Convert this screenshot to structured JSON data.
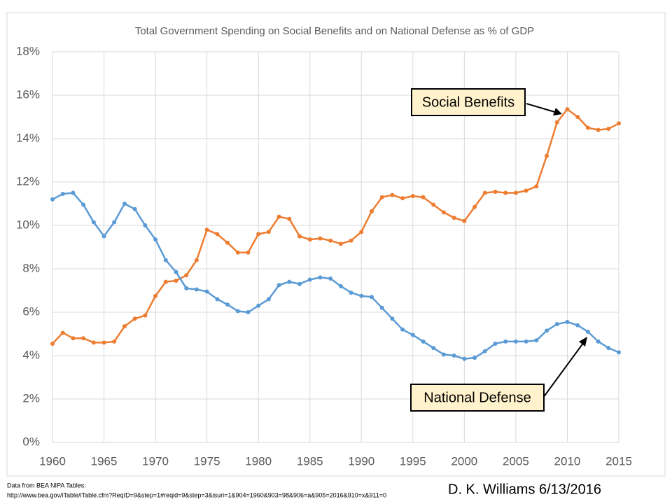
{
  "chart_data": {
    "type": "line",
    "title": "Total Government Spending on Social Benefits and on National Defense as % of GDP",
    "x": [
      1960,
      1961,
      1962,
      1963,
      1964,
      1965,
      1966,
      1967,
      1968,
      1969,
      1970,
      1971,
      1972,
      1973,
      1974,
      1975,
      1976,
      1977,
      1978,
      1979,
      1980,
      1981,
      1982,
      1983,
      1984,
      1985,
      1986,
      1987,
      1988,
      1989,
      1990,
      1991,
      1992,
      1993,
      1994,
      1995,
      1996,
      1997,
      1998,
      1999,
      2000,
      2001,
      2002,
      2003,
      2004,
      2005,
      2006,
      2007,
      2008,
      2009,
      2010,
      2011,
      2012,
      2013,
      2014,
      2015
    ],
    "series": [
      {
        "name": "Social Benefits",
        "color": "#ed7d31",
        "values": [
          4.55,
          5.05,
          4.8,
          4.8,
          4.6,
          4.6,
          4.65,
          5.35,
          5.7,
          5.85,
          6.75,
          7.4,
          7.45,
          7.7,
          8.4,
          9.8,
          9.6,
          9.2,
          8.75,
          8.75,
          9.6,
          9.7,
          10.4,
          10.3,
          9.5,
          9.35,
          9.4,
          9.3,
          9.15,
          9.3,
          9.7,
          10.65,
          11.3,
          11.4,
          11.25,
          11.35,
          11.3,
          10.95,
          10.6,
          10.35,
          10.2,
          10.85,
          11.5,
          11.55,
          11.5,
          11.5,
          11.6,
          11.8,
          13.2,
          14.75,
          15.35,
          15.0,
          14.5,
          14.4,
          14.45,
          14.7
        ]
      },
      {
        "name": "National Defense",
        "color": "#5b9bd5",
        "values": [
          11.2,
          11.45,
          11.5,
          10.95,
          10.15,
          9.5,
          10.15,
          11.0,
          10.75,
          10.0,
          9.35,
          8.4,
          7.85,
          7.1,
          7.05,
          6.95,
          6.6,
          6.35,
          6.05,
          6.0,
          6.3,
          6.6,
          7.25,
          7.4,
          7.3,
          7.5,
          7.6,
          7.55,
          7.2,
          6.9,
          6.75,
          6.7,
          6.2,
          5.7,
          5.2,
          4.95,
          4.65,
          4.35,
          4.05,
          4.0,
          3.85,
          3.9,
          4.2,
          4.55,
          4.65,
          4.65,
          4.65,
          4.7,
          5.15,
          5.45,
          5.55,
          5.4,
          5.1,
          4.65,
          4.35,
          4.15
        ]
      }
    ],
    "xlim": [
      1960,
      2015
    ],
    "xticks": [
      1960,
      1965,
      1970,
      1975,
      1980,
      1985,
      1990,
      1995,
      2000,
      2005,
      2010,
      2015
    ],
    "ylim": [
      0,
      18
    ],
    "yticks": [
      {
        "value": 0,
        "label": "0%"
      },
      {
        "value": 2,
        "label": "2%"
      },
      {
        "value": 4,
        "label": "4%"
      },
      {
        "value": 6,
        "label": "6%"
      },
      {
        "value": 8,
        "label": "8%"
      },
      {
        "value": 10,
        "label": "10%"
      },
      {
        "value": 12,
        "label": "12%"
      },
      {
        "value": 14,
        "label": "14%"
      },
      {
        "value": 16,
        "label": "16%"
      },
      {
        "value": 18,
        "label": "18%"
      }
    ],
    "grid": true,
    "source": [
      "Data from BEA NIPA Tables:",
      "http://www.bea.gov/iTable/iTable.cfm?ReqID=9&step=1#reqid=9&step=3&isuri=1&904=1960&903=98&906=a&905=2016&910=x&911=0"
    ],
    "author": "D. K. Williams 6/13/2016"
  }
}
